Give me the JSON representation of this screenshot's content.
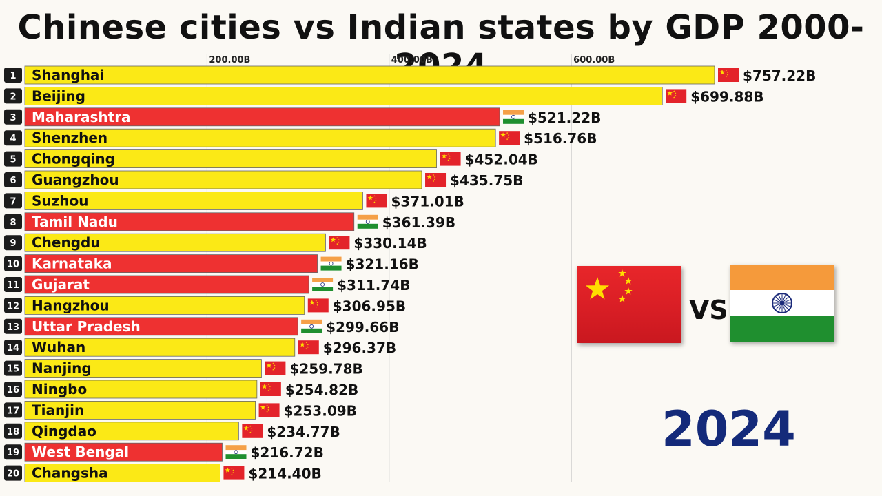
{
  "chart_data": {
    "type": "bar",
    "orientation": "horizontal",
    "title": "Chinese cities vs Indian states by GDP 2000-2024",
    "year": "2024",
    "vs_label": "VS",
    "x_ticks": [
      200,
      400,
      600
    ],
    "x_tick_labels": [
      "200.00B",
      "400.00B",
      "600.00B"
    ],
    "xlim": [
      0,
      757.22
    ],
    "grid": true,
    "colors": {
      "China": "#fbe916",
      "India": "#ee3131"
    },
    "legend": "flags at right",
    "bars": [
      {
        "rank": "1",
        "name": "Shanghai",
        "country": "China",
        "value": 757.22,
        "label": "$757.22B"
      },
      {
        "rank": "2",
        "name": "Beijing",
        "country": "China",
        "value": 699.88,
        "label": "$699.88B"
      },
      {
        "rank": "3",
        "name": "Maharashtra",
        "country": "India",
        "value": 521.22,
        "label": "$521.22B"
      },
      {
        "rank": "4",
        "name": "Shenzhen",
        "country": "China",
        "value": 516.76,
        "label": "$516.76B"
      },
      {
        "rank": "5",
        "name": "Chongqing",
        "country": "China",
        "value": 452.04,
        "label": "$452.04B"
      },
      {
        "rank": "6",
        "name": "Guangzhou",
        "country": "China",
        "value": 435.75,
        "label": "$435.75B"
      },
      {
        "rank": "7",
        "name": "Suzhou",
        "country": "China",
        "value": 371.01,
        "label": "$371.01B"
      },
      {
        "rank": "8",
        "name": "Tamil Nadu",
        "country": "India",
        "value": 361.39,
        "label": "$361.39B"
      },
      {
        "rank": "9",
        "name": "Chengdu",
        "country": "China",
        "value": 330.14,
        "label": "$330.14B"
      },
      {
        "rank": "10",
        "name": "Karnataka",
        "country": "India",
        "value": 321.16,
        "label": "$321.16B"
      },
      {
        "rank": "11",
        "name": "Gujarat",
        "country": "India",
        "value": 311.74,
        "label": "$311.74B"
      },
      {
        "rank": "12",
        "name": "Hangzhou",
        "country": "China",
        "value": 306.95,
        "label": "$306.95B"
      },
      {
        "rank": "13",
        "name": "Uttar Pradesh",
        "country": "India",
        "value": 299.66,
        "label": "$299.66B"
      },
      {
        "rank": "14",
        "name": "Wuhan",
        "country": "China",
        "value": 296.37,
        "label": "$296.37B"
      },
      {
        "rank": "15",
        "name": "Nanjing",
        "country": "China",
        "value": 259.78,
        "label": "$259.78B"
      },
      {
        "rank": "16",
        "name": "Ningbo",
        "country": "China",
        "value": 254.82,
        "label": "$254.82B"
      },
      {
        "rank": "17",
        "name": "Tianjin",
        "country": "China",
        "value": 253.09,
        "label": "$253.09B"
      },
      {
        "rank": "18",
        "name": "Qingdao",
        "country": "China",
        "value": 234.77,
        "label": "$234.77B"
      },
      {
        "rank": "19",
        "name": "West Bengal",
        "country": "India",
        "value": 216.72,
        "label": "$216.72B"
      },
      {
        "rank": "20",
        "name": "Changsha",
        "country": "China",
        "value": 214.4,
        "label": "$214.40B"
      }
    ]
  }
}
